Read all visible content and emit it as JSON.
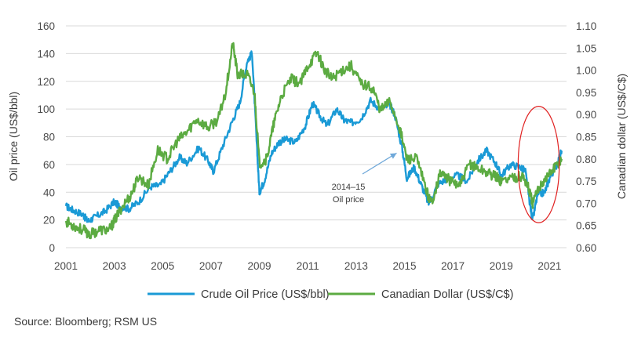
{
  "chart_data": {
    "type": "line",
    "title": "",
    "xlabel": "",
    "ylabel": "Oil price (US$/bbl)",
    "y2label": "Canadian dollar (US$/C$)",
    "xlim": [
      2001,
      2021.7
    ],
    "ylim": [
      0,
      160
    ],
    "y2lim": [
      0.6,
      1.1
    ],
    "x_ticks": [
      "2001",
      "2003",
      "2005",
      "2007",
      "2009",
      "2011",
      "2013",
      "2015",
      "2017",
      "2019",
      "2021"
    ],
    "y_ticks": [
      "0",
      "20",
      "40",
      "60",
      "80",
      "100",
      "120",
      "140",
      "160"
    ],
    "y2_ticks": [
      "0.60",
      "0.65",
      "0.70",
      "0.75",
      "0.80",
      "0.85",
      "0.90",
      "0.95",
      "1.00",
      "1.05",
      "1.10"
    ],
    "grid": "horizontal",
    "legend_position": "bottom",
    "series": [
      {
        "name": "Crude Oil Price (US$/bbl)",
        "axis": "left",
        "color": "#1a9ad6",
        "x": [
          2001.0,
          2001.3,
          2001.7,
          2001.9,
          2002.2,
          2002.6,
          2003.0,
          2003.2,
          2003.6,
          2004.0,
          2004.5,
          2004.9,
          2005.3,
          2005.7,
          2006.0,
          2006.5,
          2006.9,
          2007.1,
          2007.5,
          2007.9,
          2008.2,
          2008.5,
          2008.7,
          2008.9,
          2009.0,
          2009.2,
          2009.5,
          2009.8,
          2010.1,
          2010.5,
          2010.9,
          2011.2,
          2011.5,
          2011.8,
          2012.2,
          2012.5,
          2012.8,
          2013.2,
          2013.6,
          2014.0,
          2014.4,
          2014.6,
          2014.9,
          2015.1,
          2015.4,
          2015.7,
          2016.0,
          2016.4,
          2016.8,
          2017.2,
          2017.6,
          2018.0,
          2018.4,
          2018.8,
          2019.0,
          2019.4,
          2019.8,
          2020.0,
          2020.2,
          2020.3,
          2020.5,
          2020.8,
          2021.0,
          2021.3,
          2021.5
        ],
        "y": [
          30,
          27,
          24,
          19,
          22,
          26,
          33,
          30,
          28,
          33,
          44,
          45,
          55,
          65,
          61,
          72,
          62,
          55,
          74,
          92,
          105,
          135,
          140,
          72,
          40,
          48,
          68,
          76,
          78,
          76,
          88,
          104,
          95,
          88,
          100,
          92,
          90,
          93,
          106,
          100,
          103,
          96,
          72,
          50,
          58,
          45,
          32,
          46,
          50,
          52,
          48,
          62,
          70,
          60,
          52,
          60,
          58,
          55,
          30,
          20,
          38,
          40,
          50,
          60,
          70
        ]
      },
      {
        "name": "Canadian Dollar (US$/C$)",
        "axis": "right",
        "color": "#5cab42",
        "x": [
          2001.0,
          2001.3,
          2001.7,
          2002.0,
          2002.4,
          2002.8,
          2003.0,
          2003.3,
          2003.7,
          2004.0,
          2004.4,
          2004.8,
          2005.2,
          2005.6,
          2006.0,
          2006.4,
          2006.9,
          2007.3,
          2007.6,
          2007.9,
          2008.1,
          2008.5,
          2008.8,
          2009.0,
          2009.3,
          2009.6,
          2009.9,
          2010.3,
          2010.7,
          2011.0,
          2011.4,
          2011.7,
          2012.0,
          2012.4,
          2012.8,
          2013.2,
          2013.7,
          2014.0,
          2014.4,
          2014.8,
          2015.1,
          2015.5,
          2015.9,
          2016.1,
          2016.5,
          2016.9,
          2017.3,
          2017.7,
          2018.0,
          2018.4,
          2018.8,
          2019.0,
          2019.5,
          2019.9,
          2020.1,
          2020.3,
          2020.6,
          2020.9,
          2021.2,
          2021.5
        ],
        "y": [
          0.66,
          0.65,
          0.64,
          0.63,
          0.64,
          0.64,
          0.66,
          0.69,
          0.72,
          0.76,
          0.74,
          0.82,
          0.8,
          0.84,
          0.86,
          0.89,
          0.87,
          0.89,
          0.95,
          1.06,
          0.99,
          0.99,
          0.95,
          0.79,
          0.8,
          0.88,
          0.94,
          0.98,
          0.97,
          1.01,
          1.04,
          1.0,
          0.98,
          1.0,
          1.01,
          0.97,
          0.96,
          0.91,
          0.93,
          0.87,
          0.8,
          0.8,
          0.73,
          0.7,
          0.77,
          0.75,
          0.74,
          0.79,
          0.78,
          0.77,
          0.76,
          0.75,
          0.76,
          0.76,
          0.74,
          0.7,
          0.74,
          0.76,
          0.78,
          0.8
        ]
      }
    ],
    "annotations": [
      {
        "text_line1": "2014–15",
        "text_line2": "Oil price",
        "x": 2015.0,
        "y": 75,
        "axis": "left",
        "arrow_color": "#6fa8d9"
      },
      {
        "shape": "ellipse",
        "color": "#e02020",
        "x_center": 2020.55,
        "y_center": 60,
        "x_radius": 0.85,
        "y_radius": 42
      }
    ]
  },
  "legend": {
    "oil_label": "Crude Oil Price (US$/bbl)",
    "cad_label": "Canadian Dollar (US$/C$)"
  },
  "source": "Source: Bloomberg; RSM US"
}
